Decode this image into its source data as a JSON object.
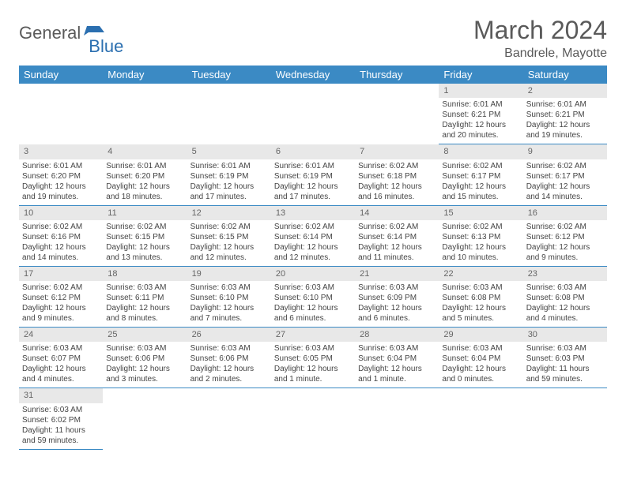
{
  "brand": {
    "part1": "General",
    "part2": "Blue"
  },
  "title": "March 2024",
  "location": "Bandrele, Mayotte",
  "colors": {
    "header_bg": "#3b8ac4",
    "brand_blue": "#2b6fb0",
    "text_gray": "#5a5a5a",
    "row_gray": "#e8e8e8"
  },
  "weekdays": [
    "Sunday",
    "Monday",
    "Tuesday",
    "Wednesday",
    "Thursday",
    "Friday",
    "Saturday"
  ],
  "days": [
    null,
    null,
    null,
    null,
    null,
    {
      "n": "1",
      "sr": "Sunrise: 6:01 AM",
      "ss": "Sunset: 6:21 PM",
      "dl1": "Daylight: 12 hours",
      "dl2": "and 20 minutes."
    },
    {
      "n": "2",
      "sr": "Sunrise: 6:01 AM",
      "ss": "Sunset: 6:21 PM",
      "dl1": "Daylight: 12 hours",
      "dl2": "and 19 minutes."
    },
    {
      "n": "3",
      "sr": "Sunrise: 6:01 AM",
      "ss": "Sunset: 6:20 PM",
      "dl1": "Daylight: 12 hours",
      "dl2": "and 19 minutes."
    },
    {
      "n": "4",
      "sr": "Sunrise: 6:01 AM",
      "ss": "Sunset: 6:20 PM",
      "dl1": "Daylight: 12 hours",
      "dl2": "and 18 minutes."
    },
    {
      "n": "5",
      "sr": "Sunrise: 6:01 AM",
      "ss": "Sunset: 6:19 PM",
      "dl1": "Daylight: 12 hours",
      "dl2": "and 17 minutes."
    },
    {
      "n": "6",
      "sr": "Sunrise: 6:01 AM",
      "ss": "Sunset: 6:19 PM",
      "dl1": "Daylight: 12 hours",
      "dl2": "and 17 minutes."
    },
    {
      "n": "7",
      "sr": "Sunrise: 6:02 AM",
      "ss": "Sunset: 6:18 PM",
      "dl1": "Daylight: 12 hours",
      "dl2": "and 16 minutes."
    },
    {
      "n": "8",
      "sr": "Sunrise: 6:02 AM",
      "ss": "Sunset: 6:17 PM",
      "dl1": "Daylight: 12 hours",
      "dl2": "and 15 minutes."
    },
    {
      "n": "9",
      "sr": "Sunrise: 6:02 AM",
      "ss": "Sunset: 6:17 PM",
      "dl1": "Daylight: 12 hours",
      "dl2": "and 14 minutes."
    },
    {
      "n": "10",
      "sr": "Sunrise: 6:02 AM",
      "ss": "Sunset: 6:16 PM",
      "dl1": "Daylight: 12 hours",
      "dl2": "and 14 minutes."
    },
    {
      "n": "11",
      "sr": "Sunrise: 6:02 AM",
      "ss": "Sunset: 6:15 PM",
      "dl1": "Daylight: 12 hours",
      "dl2": "and 13 minutes."
    },
    {
      "n": "12",
      "sr": "Sunrise: 6:02 AM",
      "ss": "Sunset: 6:15 PM",
      "dl1": "Daylight: 12 hours",
      "dl2": "and 12 minutes."
    },
    {
      "n": "13",
      "sr": "Sunrise: 6:02 AM",
      "ss": "Sunset: 6:14 PM",
      "dl1": "Daylight: 12 hours",
      "dl2": "and 12 minutes."
    },
    {
      "n": "14",
      "sr": "Sunrise: 6:02 AM",
      "ss": "Sunset: 6:14 PM",
      "dl1": "Daylight: 12 hours",
      "dl2": "and 11 minutes."
    },
    {
      "n": "15",
      "sr": "Sunrise: 6:02 AM",
      "ss": "Sunset: 6:13 PM",
      "dl1": "Daylight: 12 hours",
      "dl2": "and 10 minutes."
    },
    {
      "n": "16",
      "sr": "Sunrise: 6:02 AM",
      "ss": "Sunset: 6:12 PM",
      "dl1": "Daylight: 12 hours",
      "dl2": "and 9 minutes."
    },
    {
      "n": "17",
      "sr": "Sunrise: 6:02 AM",
      "ss": "Sunset: 6:12 PM",
      "dl1": "Daylight: 12 hours",
      "dl2": "and 9 minutes."
    },
    {
      "n": "18",
      "sr": "Sunrise: 6:03 AM",
      "ss": "Sunset: 6:11 PM",
      "dl1": "Daylight: 12 hours",
      "dl2": "and 8 minutes."
    },
    {
      "n": "19",
      "sr": "Sunrise: 6:03 AM",
      "ss": "Sunset: 6:10 PM",
      "dl1": "Daylight: 12 hours",
      "dl2": "and 7 minutes."
    },
    {
      "n": "20",
      "sr": "Sunrise: 6:03 AM",
      "ss": "Sunset: 6:10 PM",
      "dl1": "Daylight: 12 hours",
      "dl2": "and 6 minutes."
    },
    {
      "n": "21",
      "sr": "Sunrise: 6:03 AM",
      "ss": "Sunset: 6:09 PM",
      "dl1": "Daylight: 12 hours",
      "dl2": "and 6 minutes."
    },
    {
      "n": "22",
      "sr": "Sunrise: 6:03 AM",
      "ss": "Sunset: 6:08 PM",
      "dl1": "Daylight: 12 hours",
      "dl2": "and 5 minutes."
    },
    {
      "n": "23",
      "sr": "Sunrise: 6:03 AM",
      "ss": "Sunset: 6:08 PM",
      "dl1": "Daylight: 12 hours",
      "dl2": "and 4 minutes."
    },
    {
      "n": "24",
      "sr": "Sunrise: 6:03 AM",
      "ss": "Sunset: 6:07 PM",
      "dl1": "Daylight: 12 hours",
      "dl2": "and 4 minutes."
    },
    {
      "n": "25",
      "sr": "Sunrise: 6:03 AM",
      "ss": "Sunset: 6:06 PM",
      "dl1": "Daylight: 12 hours",
      "dl2": "and 3 minutes."
    },
    {
      "n": "26",
      "sr": "Sunrise: 6:03 AM",
      "ss": "Sunset: 6:06 PM",
      "dl1": "Daylight: 12 hours",
      "dl2": "and 2 minutes."
    },
    {
      "n": "27",
      "sr": "Sunrise: 6:03 AM",
      "ss": "Sunset: 6:05 PM",
      "dl1": "Daylight: 12 hours",
      "dl2": "and 1 minute."
    },
    {
      "n": "28",
      "sr": "Sunrise: 6:03 AM",
      "ss": "Sunset: 6:04 PM",
      "dl1": "Daylight: 12 hours",
      "dl2": "and 1 minute."
    },
    {
      "n": "29",
      "sr": "Sunrise: 6:03 AM",
      "ss": "Sunset: 6:04 PM",
      "dl1": "Daylight: 12 hours",
      "dl2": "and 0 minutes."
    },
    {
      "n": "30",
      "sr": "Sunrise: 6:03 AM",
      "ss": "Sunset: 6:03 PM",
      "dl1": "Daylight: 11 hours",
      "dl2": "and 59 minutes."
    },
    {
      "n": "31",
      "sr": "Sunrise: 6:03 AM",
      "ss": "Sunset: 6:02 PM",
      "dl1": "Daylight: 11 hours",
      "dl2": "and 59 minutes."
    },
    null,
    null,
    null,
    null,
    null,
    null
  ]
}
